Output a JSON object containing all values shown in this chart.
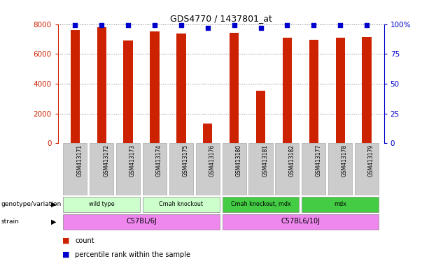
{
  "title": "GDS4770 / 1437801_at",
  "samples": [
    "GSM413171",
    "GSM413172",
    "GSM413173",
    "GSM413174",
    "GSM413175",
    "GSM413176",
    "GSM413180",
    "GSM413181",
    "GSM413182",
    "GSM413177",
    "GSM413178",
    "GSM413179"
  ],
  "counts": [
    7600,
    7800,
    6900,
    7500,
    7350,
    1350,
    7400,
    3550,
    7100,
    6950,
    7100,
    7150
  ],
  "percentiles": [
    99,
    99,
    99,
    99,
    99,
    97,
    99,
    97,
    99,
    99,
    99,
    99
  ],
  "bar_color": "#cc2200",
  "dot_color": "#0000cc",
  "ylim_left": [
    0,
    8000
  ],
  "ylim_right": [
    0,
    100
  ],
  "yticks_left": [
    0,
    2000,
    4000,
    6000,
    8000
  ],
  "yticks_right": [
    0,
    25,
    50,
    75,
    100
  ],
  "ytick_labels_right": [
    "0",
    "25",
    "50",
    "75",
    "100%"
  ],
  "grid_color": "#555555",
  "grid_alpha": 0.8,
  "genotype_groups": [
    {
      "label": "wild type",
      "start": 0,
      "end": 2,
      "color": "#ccffcc"
    },
    {
      "label": "Cmah knockout",
      "start": 3,
      "end": 5,
      "color": "#ccffcc"
    },
    {
      "label": "Cmah knockout, mdx",
      "start": 6,
      "end": 8,
      "color": "#44cc44"
    },
    {
      "label": "mdx",
      "start": 9,
      "end": 11,
      "color": "#44cc44"
    }
  ],
  "strain_groups": [
    {
      "label": "C57BL/6J",
      "start": 0,
      "end": 5,
      "color": "#ee88ee"
    },
    {
      "label": "C57BL6/10J",
      "start": 6,
      "end": 11,
      "color": "#ee88ee"
    }
  ],
  "legend_count_label": "count",
  "legend_percentile_label": "percentile rank within the sample",
  "left_axis_color": "#cc2200",
  "right_axis_color": "#0000cc",
  "bg_color": "#ffffff",
  "sample_box_color": "#cccccc",
  "fig_width": 6.13,
  "fig_height": 3.84
}
